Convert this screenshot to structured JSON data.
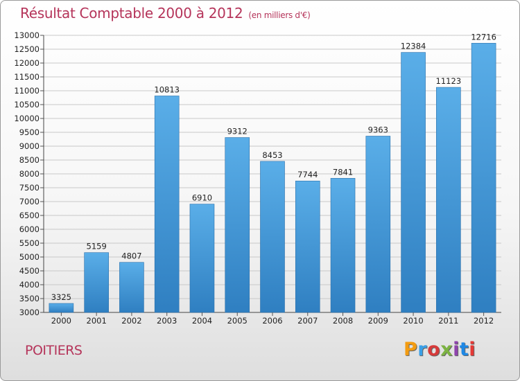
{
  "header": {
    "title": "Résultat Comptable 2000 à 2012",
    "subtitle": "(en milliers d'€)"
  },
  "footer": {
    "city": "POITIERS",
    "logo": {
      "letters": [
        "P",
        "r",
        "o",
        "x",
        "i",
        "t",
        "i"
      ],
      "colors": [
        "#f39c12",
        "#3aa0e8",
        "#d63a3a",
        "#7cb342",
        "#8e44ad",
        "#1e88e5",
        "#e53935"
      ]
    }
  },
  "colors": {
    "bar_light": "#5aaee8",
    "bar_dark": "#2f7fc1",
    "grid": "#c8c8c8",
    "title": "#b5345a"
  },
  "chart_data": {
    "type": "bar",
    "title": "Résultat Comptable 2000 à 2012",
    "subtitle": "(en milliers d'€)",
    "xlabel": "",
    "ylabel": "",
    "categories": [
      "2000",
      "2001",
      "2002",
      "2003",
      "2004",
      "2005",
      "2006",
      "2007",
      "2008",
      "2009",
      "2010",
      "2011",
      "2012"
    ],
    "values": [
      3325,
      5159,
      4807,
      10813,
      6910,
      9312,
      8453,
      7744,
      7841,
      9363,
      12384,
      11123,
      12716
    ],
    "ylim": [
      3000,
      13000
    ],
    "yticks": [
      3000,
      3500,
      4000,
      4500,
      5000,
      5500,
      6000,
      6500,
      7000,
      7500,
      8000,
      8500,
      9000,
      9500,
      10000,
      10500,
      11000,
      11500,
      12000,
      12500,
      13000
    ],
    "grid": true
  }
}
